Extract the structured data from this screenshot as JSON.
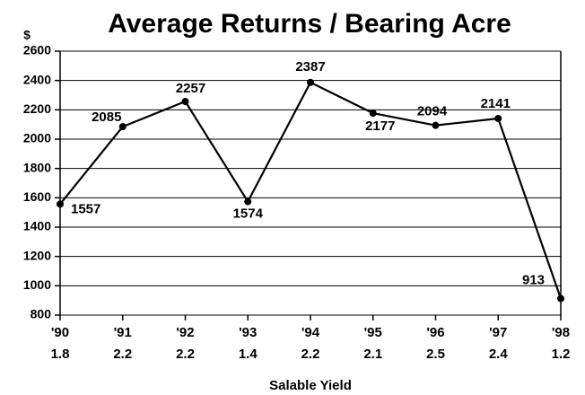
{
  "chart_data": {
    "type": "line",
    "title": "Average Returns / Bearing Acre",
    "y_label": "$",
    "x_label": "Salable Yield",
    "categories": [
      "'90",
      "'91",
      "'92",
      "'93",
      "'94",
      "'95",
      "'96",
      "'97",
      "'98"
    ],
    "salable_yield": [
      1.8,
      2.2,
      2.2,
      1.4,
      2.2,
      2.1,
      2.5,
      2.4,
      1.2
    ],
    "series": [
      {
        "name": "Average Returns",
        "color": "#000000",
        "values": [
          1557,
          2085,
          2257,
          1574,
          2387,
          2177,
          2094,
          2141,
          913
        ]
      }
    ],
    "ylim": [
      800,
      2600
    ],
    "yticks": [
      800,
      1000,
      1200,
      1400,
      1600,
      1800,
      2000,
      2200,
      2400,
      2600
    ],
    "grid": true
  }
}
